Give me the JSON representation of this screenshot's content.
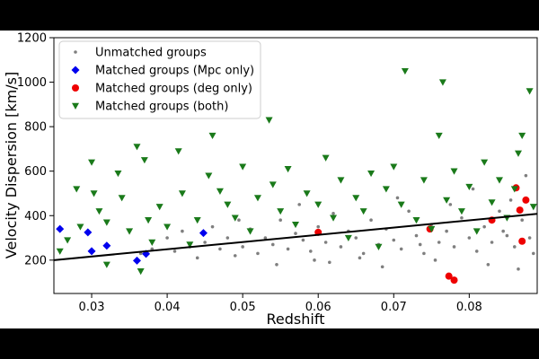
{
  "chart_data": {
    "type": "scatter",
    "xlabel": "Redshift",
    "ylabel": "Velocity Dispersion [km/s]",
    "xlim": [
      0.025,
      0.089
    ],
    "ylim": [
      50,
      1200
    ],
    "x_ticks": [
      0.03,
      0.04,
      0.05,
      0.06,
      0.07,
      0.08
    ],
    "x_tick_labels": [
      "0.03",
      "0.04",
      "0.05",
      "0.06",
      "0.07",
      "0.08"
    ],
    "y_ticks": [
      200,
      400,
      600,
      800,
      1000,
      1200
    ],
    "y_tick_labels": [
      "200",
      "400",
      "600",
      "800",
      "1000",
      "1200"
    ],
    "grid": false,
    "legend_position": "top-left",
    "fit_line": {
      "x": [
        0.025,
        0.089
      ],
      "y": [
        200,
        408
      ],
      "color": "#000000"
    },
    "series": [
      {
        "name": "Unmatched groups",
        "marker": "circle-small",
        "color": "#7f7f7f",
        "points": [
          [
            0.036,
            195
          ],
          [
            0.0365,
            230
          ],
          [
            0.038,
            250
          ],
          [
            0.04,
            300
          ],
          [
            0.041,
            240
          ],
          [
            0.042,
            330
          ],
          [
            0.043,
            260
          ],
          [
            0.044,
            210
          ],
          [
            0.045,
            280
          ],
          [
            0.046,
            350
          ],
          [
            0.047,
            250
          ],
          [
            0.048,
            300
          ],
          [
            0.049,
            220
          ],
          [
            0.05,
            260
          ],
          [
            0.051,
            340
          ],
          [
            0.052,
            230
          ],
          [
            0.053,
            300
          ],
          [
            0.054,
            270
          ],
          [
            0.055,
            380
          ],
          [
            0.056,
            250
          ],
          [
            0.057,
            320
          ],
          [
            0.058,
            290
          ],
          [
            0.059,
            240
          ],
          [
            0.06,
            350
          ],
          [
            0.061,
            280
          ],
          [
            0.062,
            410
          ],
          [
            0.063,
            260
          ],
          [
            0.064,
            330
          ],
          [
            0.065,
            300
          ],
          [
            0.066,
            230
          ],
          [
            0.067,
            380
          ],
          [
            0.068,
            270
          ],
          [
            0.069,
            340
          ],
          [
            0.07,
            290
          ],
          [
            0.071,
            250
          ],
          [
            0.072,
            420
          ],
          [
            0.073,
            310
          ],
          [
            0.074,
            230
          ],
          [
            0.075,
            360
          ],
          [
            0.076,
            280
          ],
          [
            0.077,
            330
          ],
          [
            0.078,
            260
          ],
          [
            0.079,
            390
          ],
          [
            0.08,
            300
          ],
          [
            0.081,
            240
          ],
          [
            0.082,
            350
          ],
          [
            0.083,
            280
          ],
          [
            0.084,
            420
          ],
          [
            0.085,
            310
          ],
          [
            0.086,
            260
          ],
          [
            0.087,
            380
          ],
          [
            0.088,
            300
          ],
          [
            0.0885,
            230
          ],
          [
            0.0545,
            180
          ],
          [
            0.0615,
            190
          ],
          [
            0.0685,
            170
          ],
          [
            0.0755,
            200
          ],
          [
            0.0825,
            180
          ],
          [
            0.0865,
            160
          ],
          [
            0.0575,
            450
          ],
          [
            0.0705,
            480
          ],
          [
            0.0805,
            520
          ],
          [
            0.0875,
            580
          ],
          [
            0.0655,
            210
          ],
          [
            0.0735,
            270
          ],
          [
            0.0845,
            330
          ],
          [
            0.0495,
            380
          ],
          [
            0.0595,
            200
          ],
          [
            0.0775,
            450
          ],
          [
            0.0855,
            470
          ]
        ]
      },
      {
        "name": "Matched groups (Mpc only)",
        "marker": "diamond",
        "color": "#0000ee",
        "points": [
          [
            0.0258,
            340
          ],
          [
            0.0295,
            325
          ],
          [
            0.03,
            240
          ],
          [
            0.032,
            265
          ],
          [
            0.036,
            198
          ],
          [
            0.0372,
            228
          ],
          [
            0.0448,
            322
          ]
        ]
      },
      {
        "name": "Matched groups (deg only)",
        "marker": "circle",
        "color": "#ee0000",
        "points": [
          [
            0.06,
            325
          ],
          [
            0.0748,
            340
          ],
          [
            0.0773,
            128
          ],
          [
            0.078,
            110
          ],
          [
            0.083,
            380
          ],
          [
            0.0862,
            525
          ],
          [
            0.0867,
            425
          ],
          [
            0.087,
            285
          ],
          [
            0.0875,
            470
          ]
        ]
      },
      {
        "name": "Matched groups (both)",
        "marker": "triangle-down",
        "color": "#1a7a1a",
        "points": [
          [
            0.0258,
            240
          ],
          [
            0.0268,
            290
          ],
          [
            0.028,
            520
          ],
          [
            0.0285,
            350
          ],
          [
            0.03,
            640
          ],
          [
            0.0303,
            500
          ],
          [
            0.031,
            420
          ],
          [
            0.032,
            370
          ],
          [
            0.0335,
            590
          ],
          [
            0.034,
            480
          ],
          [
            0.035,
            330
          ],
          [
            0.036,
            710
          ],
          [
            0.037,
            650
          ],
          [
            0.0375,
            380
          ],
          [
            0.038,
            280
          ],
          [
            0.039,
            440
          ],
          [
            0.04,
            350
          ],
          [
            0.0415,
            690
          ],
          [
            0.042,
            500
          ],
          [
            0.043,
            270
          ],
          [
            0.044,
            380
          ],
          [
            0.0455,
            580
          ],
          [
            0.046,
            760
          ],
          [
            0.047,
            510
          ],
          [
            0.048,
            450
          ],
          [
            0.049,
            390
          ],
          [
            0.05,
            620
          ],
          [
            0.051,
            330
          ],
          [
            0.052,
            480
          ],
          [
            0.0535,
            830
          ],
          [
            0.054,
            540
          ],
          [
            0.055,
            420
          ],
          [
            0.056,
            610
          ],
          [
            0.057,
            360
          ],
          [
            0.0585,
            500
          ],
          [
            0.06,
            450
          ],
          [
            0.061,
            660
          ],
          [
            0.062,
            390
          ],
          [
            0.063,
            560
          ],
          [
            0.064,
            300
          ],
          [
            0.065,
            480
          ],
          [
            0.066,
            420
          ],
          [
            0.067,
            590
          ],
          [
            0.068,
            260
          ],
          [
            0.069,
            520
          ],
          [
            0.07,
            620
          ],
          [
            0.071,
            450
          ],
          [
            0.0715,
            1050
          ],
          [
            0.073,
            380
          ],
          [
            0.074,
            560
          ],
          [
            0.075,
            340
          ],
          [
            0.076,
            760
          ],
          [
            0.0765,
            1000
          ],
          [
            0.077,
            470
          ],
          [
            0.078,
            600
          ],
          [
            0.079,
            420
          ],
          [
            0.08,
            530
          ],
          [
            0.081,
            330
          ],
          [
            0.082,
            640
          ],
          [
            0.083,
            460
          ],
          [
            0.084,
            560
          ],
          [
            0.085,
            390
          ],
          [
            0.086,
            520
          ],
          [
            0.0865,
            680
          ],
          [
            0.087,
            760
          ],
          [
            0.088,
            960
          ],
          [
            0.0885,
            440
          ],
          [
            0.032,
            180
          ],
          [
            0.0365,
            150
          ]
        ]
      }
    ]
  }
}
